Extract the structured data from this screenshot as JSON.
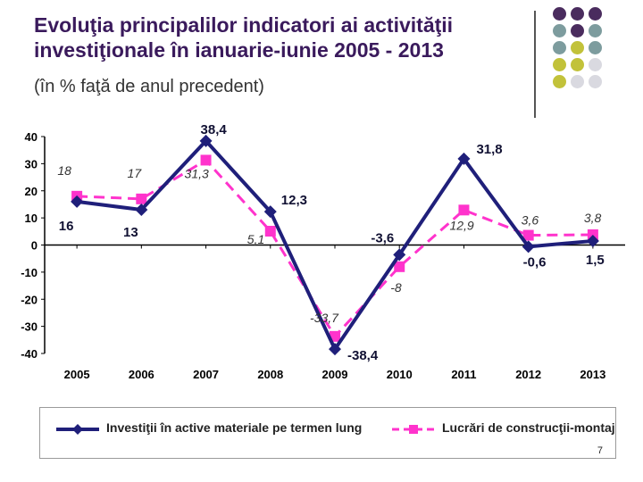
{
  "header": {
    "title": "Evoluţia principalilor indicatori ai activităţii investiţionale în ianuarie-iunie 2005 - 2013",
    "subtitle": "(în % faţă de anul precedent)"
  },
  "decor_dots": [
    "#4a2c5e",
    "#4a2c5e",
    "#4a2c5e",
    "#7d9c9e",
    "#4a2c5e",
    "#7d9c9e",
    "#7d9c9e",
    "#c2c23a",
    "#7d9c9e",
    "#c2c23a",
    "#c2c23a",
    "#d9d9e0",
    "#c2c23a",
    "#d9d9e0",
    "#d9d9e0"
  ],
  "page_number": "7",
  "chart_data": {
    "type": "line",
    "x": [
      "2005",
      "2006",
      "2007",
      "2008",
      "2009",
      "2010",
      "2011",
      "2012",
      "2013"
    ],
    "ylim": [
      -40,
      40
    ],
    "yticks": [
      "40",
      "30",
      "20",
      "10",
      "0",
      "-10",
      "-20",
      "-30",
      "-40"
    ],
    "series": [
      {
        "name": "Investiţii în active materiale pe termen lung",
        "values": [
          16,
          13,
          38.4,
          12.3,
          -38.4,
          -3.6,
          31.8,
          -0.6,
          1.5
        ],
        "labels": [
          "16",
          "13",
          "38,4",
          "12,3",
          "-38,4",
          "-3,6",
          "31,8",
          "-0,6",
          "1,5"
        ],
        "color": "#1f1f7a",
        "marker": "diamond",
        "dash": false
      },
      {
        "name": "Lucrări de construcţii-montaj",
        "values": [
          18,
          17,
          31.3,
          5.1,
          -33.7,
          -8,
          12.9,
          3.6,
          3.8
        ],
        "labels": [
          "18",
          "17",
          "31,3",
          "5,1",
          "-33,7",
          "-8",
          "12,9",
          "3,6",
          "3,8"
        ],
        "color": "#ff33cc",
        "marker": "square",
        "dash": true
      }
    ]
  }
}
